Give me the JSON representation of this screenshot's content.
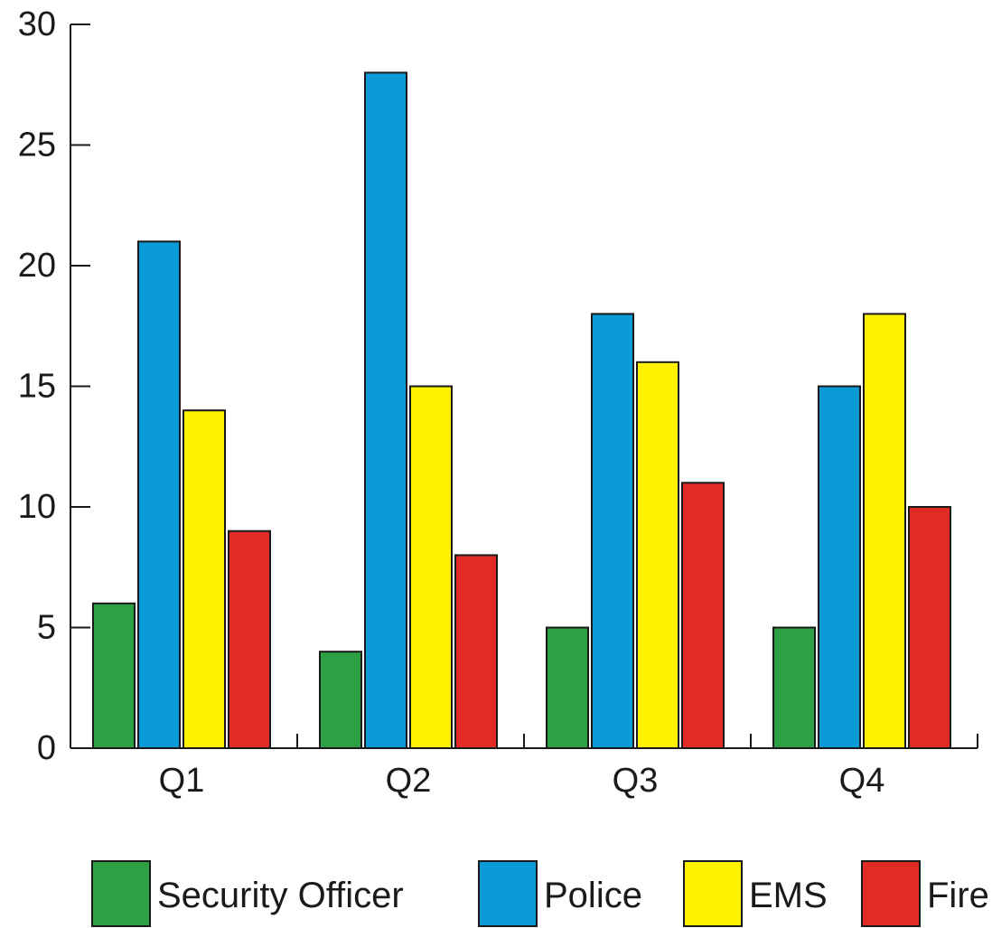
{
  "chart_data": {
    "type": "bar",
    "categories": [
      "Q1",
      "Q2",
      "Q3",
      "Q4"
    ],
    "series": [
      {
        "name": "Security Officer",
        "color": "#2ca043",
        "values": [
          6,
          4,
          5,
          5
        ]
      },
      {
        "name": "Police",
        "color": "#0a9ad8",
        "values": [
          21,
          28,
          18,
          15
        ]
      },
      {
        "name": "EMS",
        "color": "#fff200",
        "values": [
          14,
          15,
          16,
          18
        ]
      },
      {
        "name": "Fire",
        "color": "#e32b26",
        "values": [
          9,
          8,
          11,
          10
        ]
      }
    ],
    "yticks": [
      0,
      5,
      10,
      15,
      20,
      25,
      30
    ],
    "ylim": [
      0,
      30
    ],
    "grid": false,
    "legend_position": "bottom",
    "title": "",
    "xlabel": "",
    "ylabel": ""
  }
}
